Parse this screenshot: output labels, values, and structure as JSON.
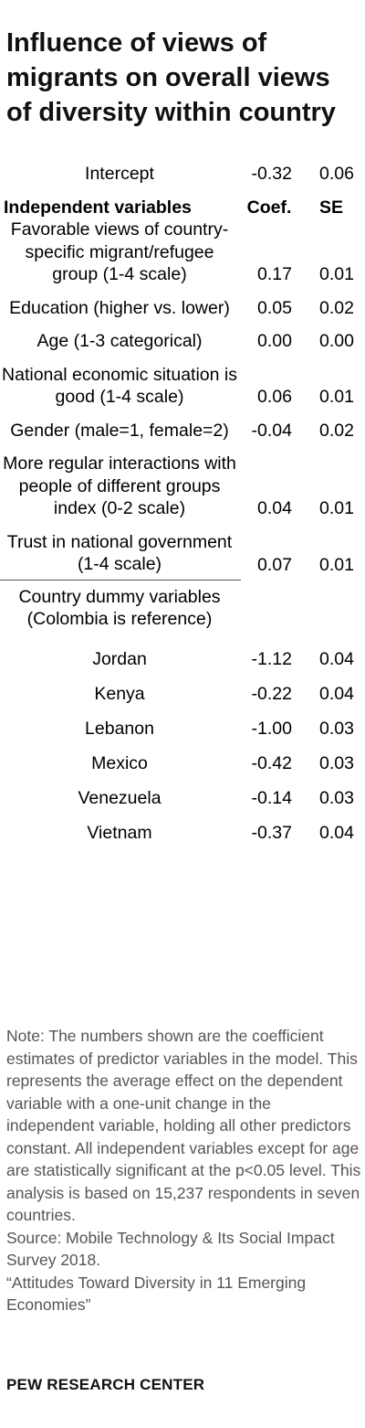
{
  "title": "Influence of views of migrants on overall views of diversity within country",
  "chart_data": {
    "type": "table",
    "intercept": {
      "label": "Intercept",
      "coef": "-0.32",
      "se": "0.06"
    },
    "columns": [
      "Independent variables",
      "Coef.",
      "SE"
    ],
    "rows": [
      {
        "label": "Favorable views of country-specific migrant/refugee group (1-4 scale)",
        "coef": "0.17",
        "se": "0.01"
      },
      {
        "label": "Education (higher vs. lower)",
        "coef": "0.05",
        "se": "0.02"
      },
      {
        "label": "Age (1-3 categorical)",
        "coef": "0.00",
        "se": "0.00"
      },
      {
        "label": "National economic situation is good (1-4 scale)",
        "coef": "0.06",
        "se": "0.01"
      },
      {
        "label": "Gender (male=1, female=2)",
        "coef": "-0.04",
        "se": "0.02"
      },
      {
        "label": "More regular interactions with people of different groups index (0-2 scale)",
        "coef": "0.04",
        "se": "0.01"
      },
      {
        "label": "Trust in national government (1-4 scale)",
        "coef": "0.07",
        "se": "0.01"
      }
    ],
    "dummy_header": "Country dummy variables (Colombia is reference)",
    "countries": [
      {
        "label": "Jordan",
        "coef": "-1.12",
        "se": "0.04"
      },
      {
        "label": "Kenya",
        "coef": "-0.22",
        "se": "0.04"
      },
      {
        "label": "Lebanon",
        "coef": "-1.00",
        "se": "0.03"
      },
      {
        "label": "Mexico",
        "coef": "-0.42",
        "se": "0.03"
      },
      {
        "label": "Venezuela",
        "coef": "-0.14",
        "se": "0.03"
      },
      {
        "label": "Vietnam",
        "coef": "-0.37",
        "se": "0.04"
      }
    ]
  },
  "note": "Note: The numbers shown are the coefficient estimates of predictor variables in the model. This represents the average effect on the dependent variable with a one-unit change in the independent variable, holding all other predictors constant. All independent variables except for age are statistically significant at the p<0.05 level. This analysis is based on 15,237 respondents in seven countries.",
  "source": "Source: Mobile Technology & Its Social Impact Survey 2018.",
  "report": "“Attitudes Toward Diversity in 11 Emerging Economies”",
  "brand": "PEW RESEARCH CENTER",
  "colors": {
    "text": "#000000",
    "note": "#555555",
    "rule": "#555555"
  }
}
